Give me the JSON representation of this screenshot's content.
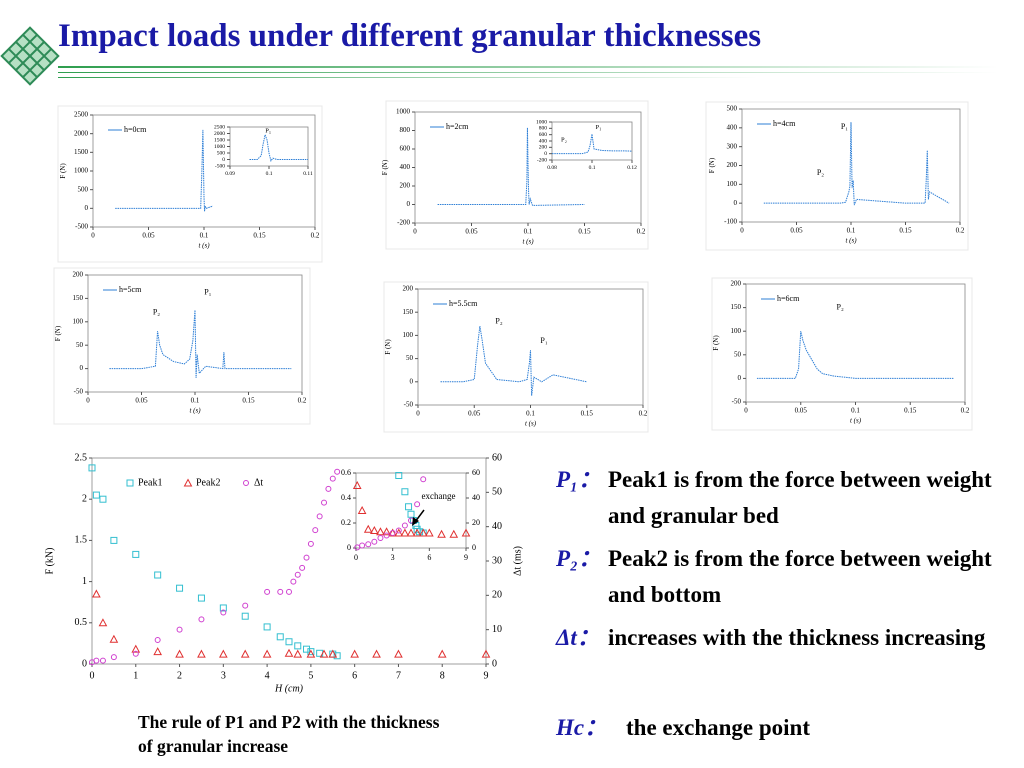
{
  "slide": {
    "title": "Impact loads under different granular thicknesses",
    "caption": "The rule of P1 and P2 with the thickness of granular increase",
    "notes": [
      {
        "term": "P₁：",
        "text": "Peak1 is from the force between weight and granular bed"
      },
      {
        "term": "P₂：",
        "text": "Peak2 is from the force between weight and bottom"
      },
      {
        "term": "Δt：",
        "text": "increases with the thickness increasing"
      },
      {
        "term": "Hc：",
        "text": "the exchange point"
      }
    ]
  },
  "chart_data": [
    {
      "type": "line",
      "xlabel": "t (s)",
      "ylabel": "F (N)",
      "xlim": [
        0,
        0.2
      ],
      "xticks": [
        0,
        0.05,
        0.1,
        0.15,
        0.2
      ],
      "ylim": [
        -500,
        2500
      ],
      "yticks": [
        -500,
        0,
        500,
        1000,
        1500,
        2000,
        2500
      ],
      "series": [
        {
          "name": "h=0cm",
          "color": "#2e7fd6",
          "x": [
            0.02,
            0.05,
            0.08,
            0.097,
            0.098,
            0.099,
            0.0995,
            0.1,
            0.1005,
            0.101,
            0.102,
            0.108
          ],
          "values": [
            0,
            0,
            0,
            0,
            900,
            2100,
            1200,
            300,
            -80,
            60,
            0,
            60
          ]
        }
      ]
    },
    {
      "type": "line",
      "xlim": [
        0.09,
        0.11
      ],
      "xticks": [
        0.09,
        0.1,
        0.11
      ],
      "ylim": [
        -500,
        2500
      ],
      "yticks": [
        -500,
        0,
        500,
        1000,
        1500,
        2000,
        2500
      ],
      "annotations": [
        "P₁"
      ],
      "series": [
        {
          "color": "#2e7fd6",
          "x": [
            0.095,
            0.097,
            0.098,
            0.0985,
            0.099,
            0.0995,
            0.1,
            0.1005,
            0.101,
            0.102,
            0.105,
            0.11
          ],
          "values": [
            0,
            0,
            300,
            1200,
            1900,
            1500,
            500,
            -100,
            100,
            0,
            0,
            0
          ]
        }
      ]
    },
    {
      "type": "line",
      "xlabel": "t (s)",
      "ylabel": "F (N)",
      "xlim": [
        0,
        0.2
      ],
      "xticks": [
        0,
        0.05,
        0.1,
        0.15,
        0.2
      ],
      "ylim": [
        -200,
        1000
      ],
      "yticks": [
        -200,
        0,
        200,
        400,
        600,
        800,
        1000
      ],
      "series": [
        {
          "name": "h=2cm",
          "color": "#2e7fd6",
          "x": [
            0.02,
            0.05,
            0.08,
            0.098,
            0.099,
            0.0995,
            0.1,
            0.1005,
            0.101,
            0.102,
            0.104,
            0.15
          ],
          "values": [
            0,
            0,
            0,
            0,
            250,
            830,
            450,
            150,
            0,
            60,
            -10,
            0
          ]
        }
      ]
    },
    {
      "type": "line",
      "xlim": [
        0.08,
        0.12
      ],
      "xticks": [
        0.08,
        0.1,
        0.12
      ],
      "ylim": [
        -200,
        1000
      ],
      "yticks": [
        -200,
        0,
        200,
        400,
        600,
        800,
        1000
      ],
      "annotations": [
        "P₁",
        "P₂"
      ],
      "series": [
        {
          "color": "#2e7fd6",
          "x": [
            0.08,
            0.085,
            0.09,
            0.095,
            0.098,
            0.099,
            0.1,
            0.101,
            0.105,
            0.11,
            0.115,
            0.12
          ],
          "values": [
            0,
            0,
            0,
            0,
            50,
            250,
            620,
            150,
            100,
            90,
            90,
            80
          ]
        }
      ]
    },
    {
      "type": "line",
      "xlabel": "t (s)",
      "ylabel": "F (N)",
      "xlim": [
        0,
        0.2
      ],
      "xticks": [
        0,
        0.05,
        0.1,
        0.15,
        0.2
      ],
      "ylim": [
        -100,
        500
      ],
      "yticks": [
        -100,
        0,
        100,
        200,
        300,
        400,
        500
      ],
      "annotations": [
        "P₁",
        "P₂"
      ],
      "series": [
        {
          "name": "h=4cm",
          "color": "#2e7fd6",
          "x": [
            0.02,
            0.05,
            0.09,
            0.095,
            0.098,
            0.099,
            0.1,
            0.101,
            0.102,
            0.103,
            0.105,
            0.15,
            0.168,
            0.169,
            0.17,
            0.171,
            0.172,
            0.19
          ],
          "values": [
            0,
            0,
            0,
            5,
            60,
            90,
            430,
            80,
            120,
            -10,
            20,
            0,
            0,
            120,
            280,
            20,
            60,
            0
          ]
        }
      ]
    },
    {
      "type": "line",
      "xlabel": "t (s)",
      "ylabel": "F (N)",
      "xlim": [
        0,
        0.2
      ],
      "xticks": [
        0,
        0.05,
        0.1,
        0.15,
        0.2
      ],
      "ylim": [
        -50,
        200
      ],
      "yticks": [
        -50,
        0,
        50,
        100,
        150,
        200
      ],
      "annotations": [
        "P₁",
        "P₂"
      ],
      "series": [
        {
          "name": "h=5cm",
          "color": "#2e7fd6",
          "x": [
            0.02,
            0.05,
            0.063,
            0.065,
            0.067,
            0.07,
            0.08,
            0.09,
            0.095,
            0.098,
            0.1,
            0.101,
            0.102,
            0.104,
            0.11,
            0.126,
            0.127,
            0.128,
            0.15,
            0.19
          ],
          "values": [
            0,
            0,
            5,
            80,
            50,
            30,
            15,
            10,
            20,
            60,
            125,
            -20,
            30,
            -10,
            5,
            0,
            35,
            0,
            0,
            0
          ]
        }
      ]
    },
    {
      "type": "line",
      "xlabel": "t (s)",
      "ylabel": "F (N)",
      "xlim": [
        0,
        0.2
      ],
      "xticks": [
        0,
        0.05,
        0.1,
        0.15,
        0.2
      ],
      "ylim": [
        -50,
        200
      ],
      "yticks": [
        -50,
        0,
        50,
        100,
        150,
        200
      ],
      "annotations": [
        "P₂",
        "P₁"
      ],
      "series": [
        {
          "name": "h=5.5cm",
          "color": "#2e7fd6",
          "x": [
            0.02,
            0.04,
            0.05,
            0.053,
            0.055,
            0.057,
            0.06,
            0.07,
            0.09,
            0.097,
            0.099,
            0.1,
            0.101,
            0.103,
            0.11,
            0.12,
            0.15
          ],
          "values": [
            0,
            0,
            5,
            80,
            120,
            90,
            40,
            5,
            0,
            5,
            40,
            68,
            -30,
            10,
            0,
            15,
            0
          ]
        }
      ]
    },
    {
      "type": "line",
      "xlabel": "t (s)",
      "ylabel": "F (N)",
      "xlim": [
        0,
        0.2
      ],
      "xticks": [
        0,
        0.05,
        0.1,
        0.15,
        0.2
      ],
      "ylim": [
        -50,
        200
      ],
      "yticks": [
        -50,
        0,
        50,
        100,
        150,
        200
      ],
      "annotations": [
        "P₂"
      ],
      "series": [
        {
          "name": "h=6cm",
          "color": "#2e7fd6",
          "x": [
            0.01,
            0.03,
            0.045,
            0.048,
            0.05,
            0.052,
            0.055,
            0.06,
            0.065,
            0.07,
            0.08,
            0.1,
            0.15,
            0.19
          ],
          "values": [
            0,
            0,
            0,
            20,
            100,
            80,
            60,
            40,
            20,
            10,
            5,
            0,
            0,
            0
          ]
        }
      ]
    },
    {
      "type": "scatter",
      "xlabel": "H (cm)",
      "ylabel": "F (kN)",
      "y2label": "Δt (ms)",
      "xlim": [
        0,
        9
      ],
      "xticks": [
        0,
        1,
        2,
        3,
        4,
        5,
        6,
        7,
        8,
        9
      ],
      "ylim": [
        0,
        2.5
      ],
      "yticks": [
        0,
        0.5,
        1,
        1.5,
        2,
        2.5
      ],
      "y2lim": [
        0,
        60
      ],
      "y2ticks": [
        0,
        10,
        20,
        30,
        40,
        50,
        60
      ],
      "series": [
        {
          "name": "Peak1",
          "color": "#33bfd0",
          "marker": "square",
          "x": [
            0,
            0.1,
            0.25,
            0.5,
            1,
            1.5,
            2,
            2.5,
            3,
            3.5,
            4,
            4.3,
            4.5,
            4.7,
            4.9,
            5,
            5.2,
            5.5,
            5.6
          ],
          "values": [
            2.38,
            2.05,
            2.0,
            1.5,
            1.33,
            1.08,
            0.92,
            0.8,
            0.68,
            0.58,
            0.45,
            0.33,
            0.27,
            0.22,
            0.18,
            0.15,
            0.13,
            0.12,
            0.1
          ]
        },
        {
          "name": "Peak2",
          "color": "#e03030",
          "marker": "triangle",
          "x": [
            0.1,
            0.25,
            0.5,
            1,
            1.5,
            2,
            2.5,
            3,
            3.5,
            4,
            4.5,
            4.7,
            5,
            5.3,
            5.5,
            6,
            6.5,
            7,
            8,
            9
          ],
          "values": [
            0.85,
            0.5,
            0.3,
            0.18,
            0.15,
            0.12,
            0.12,
            0.12,
            0.12,
            0.12,
            0.13,
            0.12,
            0.12,
            0.12,
            0.12,
            0.12,
            0.12,
            0.12,
            0.12,
            0.12
          ]
        },
        {
          "name": "Δt",
          "color": "#d040d0",
          "marker": "circle",
          "axis": "y2",
          "x": [
            0,
            0.1,
            0.25,
            0.5,
            1,
            1.5,
            2,
            2.5,
            3,
            3.5,
            4,
            4.3,
            4.5,
            4.6,
            4.7,
            4.8,
            4.9,
            5,
            5.1,
            5.2,
            5.3,
            5.4,
            5.5,
            5.6
          ],
          "values": [
            0.5,
            1,
            1,
            2,
            3,
            7,
            10,
            13,
            15,
            17,
            21,
            21,
            21,
            24,
            26,
            28,
            31,
            35,
            39,
            43,
            47,
            51,
            54,
            56
          ]
        }
      ]
    },
    {
      "type": "scatter",
      "xlim": [
        0,
        9
      ],
      "xticks": [
        0,
        3,
        6,
        9
      ],
      "ylim": [
        0,
        0.6
      ],
      "yticks": [
        0,
        0.2,
        0.4,
        0.6
      ],
      "y2lim": [
        0,
        60
      ],
      "y2ticks": [
        0,
        20,
        40,
        60
      ],
      "annotations": [
        "exchange"
      ],
      "series": [
        {
          "color": "#33bfd0",
          "marker": "square",
          "x": [
            3.5,
            4,
            4.3,
            4.5,
            4.7,
            4.9,
            5,
            5.2,
            5.5
          ],
          "values": [
            0.58,
            0.45,
            0.33,
            0.27,
            0.22,
            0.18,
            0.15,
            0.13,
            0.12
          ]
        },
        {
          "color": "#e03030",
          "marker": "triangle",
          "x": [
            0.1,
            0.5,
            1,
            1.5,
            2,
            2.5,
            3,
            3.5,
            4,
            4.5,
            5,
            5.5,
            6,
            7,
            8,
            9
          ],
          "values": [
            0.5,
            0.3,
            0.15,
            0.14,
            0.13,
            0.13,
            0.12,
            0.12,
            0.12,
            0.12,
            0.12,
            0.12,
            0.12,
            0.11,
            0.11,
            0.12
          ]
        },
        {
          "color": "#d040d0",
          "marker": "circle",
          "axis": "y2",
          "x": [
            0.1,
            0.5,
            1,
            1.5,
            2,
            2.5,
            3,
            3.5,
            4,
            4.5,
            5,
            5.5
          ],
          "values": [
            0.5,
            2,
            3,
            5,
            8,
            10,
            12,
            14,
            18,
            22,
            35,
            55
          ]
        }
      ]
    }
  ]
}
